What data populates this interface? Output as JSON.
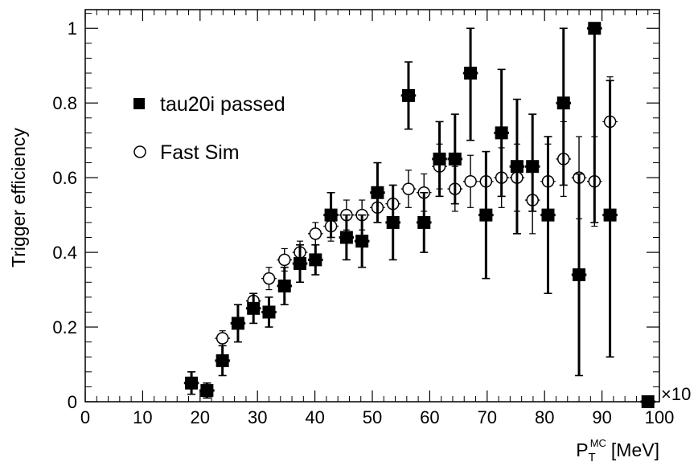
{
  "chart_data": {
    "type": "scatter",
    "ylabel": "Trigger efficiency",
    "xlabel": {
      "main": "P",
      "sub": "T",
      "sup": "MC",
      "unit": "[MeV]"
    },
    "x_multiplier": "×10",
    "xlim": [
      0,
      100
    ],
    "ylim": [
      0,
      1.05
    ],
    "xticks": [
      0,
      10,
      20,
      30,
      40,
      50,
      60,
      70,
      80,
      90,
      100
    ],
    "yticks": [
      0,
      0.2,
      0.4,
      0.6,
      0.8,
      1
    ],
    "ytick_labels": [
      "0",
      "0.2",
      "0.4",
      "0.6",
      "0.8",
      "1"
    ],
    "grid": false,
    "legend_position": "upper-left",
    "series": [
      {
        "name": "tau20i passed",
        "marker": "filled-square",
        "color": "#000000",
        "x": [
          18.5,
          21.2,
          23.9,
          26.6,
          29.3,
          32.0,
          34.7,
          37.4,
          40.1,
          42.8,
          45.5,
          48.2,
          50.9,
          53.6,
          56.3,
          59.0,
          61.7,
          64.4,
          67.1,
          69.8,
          72.5,
          75.2,
          77.9,
          80.6,
          83.3,
          86.0,
          88.7,
          91.4,
          98.0
        ],
        "y": [
          0.05,
          0.03,
          0.11,
          0.21,
          0.25,
          0.24,
          0.31,
          0.37,
          0.38,
          0.5,
          0.44,
          0.43,
          0.56,
          0.48,
          0.82,
          0.48,
          0.65,
          0.65,
          0.88,
          0.5,
          0.72,
          0.63,
          0.63,
          0.5,
          0.8,
          0.34,
          1.0,
          0.5,
          0.0
        ],
        "err_lo": [
          0.03,
          0.02,
          0.04,
          0.05,
          0.04,
          0.04,
          0.05,
          0.05,
          0.04,
          0.06,
          0.06,
          0.07,
          0.08,
          0.1,
          0.09,
          0.08,
          0.1,
          0.12,
          0.18,
          0.17,
          0.17,
          0.18,
          0.12,
          0.21,
          0.22,
          0.27,
          0.52,
          0.38,
          0.0
        ],
        "err_hi": [
          0.03,
          0.02,
          0.04,
          0.05,
          0.04,
          0.04,
          0.05,
          0.05,
          0.04,
          0.06,
          0.06,
          0.07,
          0.08,
          0.1,
          0.09,
          0.08,
          0.1,
          0.12,
          0.12,
          0.17,
          0.17,
          0.18,
          0.14,
          0.21,
          0.2,
          0.27,
          0.0,
          0.36,
          0.0
        ]
      },
      {
        "name": "Fast Sim",
        "marker": "open-circle",
        "color": "#000000",
        "x": [
          23.9,
          29.3,
          32.0,
          34.7,
          37.4,
          40.1,
          42.8,
          45.5,
          48.2,
          50.9,
          53.6,
          56.3,
          59.0,
          61.7,
          64.4,
          67.1,
          69.8,
          72.5,
          75.2,
          77.9,
          80.6,
          83.3,
          86.0,
          88.7,
          91.4
        ],
        "y": [
          0.17,
          0.27,
          0.33,
          0.38,
          0.4,
          0.45,
          0.47,
          0.5,
          0.5,
          0.52,
          0.53,
          0.57,
          0.56,
          0.63,
          0.57,
          0.59,
          0.59,
          0.6,
          0.6,
          0.54,
          0.59,
          0.65,
          0.6,
          0.59,
          0.75
        ],
        "err_lo": [
          0.02,
          0.02,
          0.03,
          0.03,
          0.03,
          0.03,
          0.04,
          0.04,
          0.04,
          0.04,
          0.05,
          0.05,
          0.05,
          0.06,
          0.06,
          0.07,
          0.08,
          0.08,
          0.09,
          0.09,
          0.1,
          0.1,
          0.11,
          0.12,
          0.26
        ],
        "err_hi": [
          0.02,
          0.02,
          0.03,
          0.03,
          0.03,
          0.03,
          0.04,
          0.04,
          0.04,
          0.04,
          0.05,
          0.05,
          0.05,
          0.06,
          0.06,
          0.07,
          0.08,
          0.08,
          0.09,
          0.09,
          0.1,
          0.1,
          0.11,
          0.12,
          0.12
        ]
      }
    ]
  }
}
